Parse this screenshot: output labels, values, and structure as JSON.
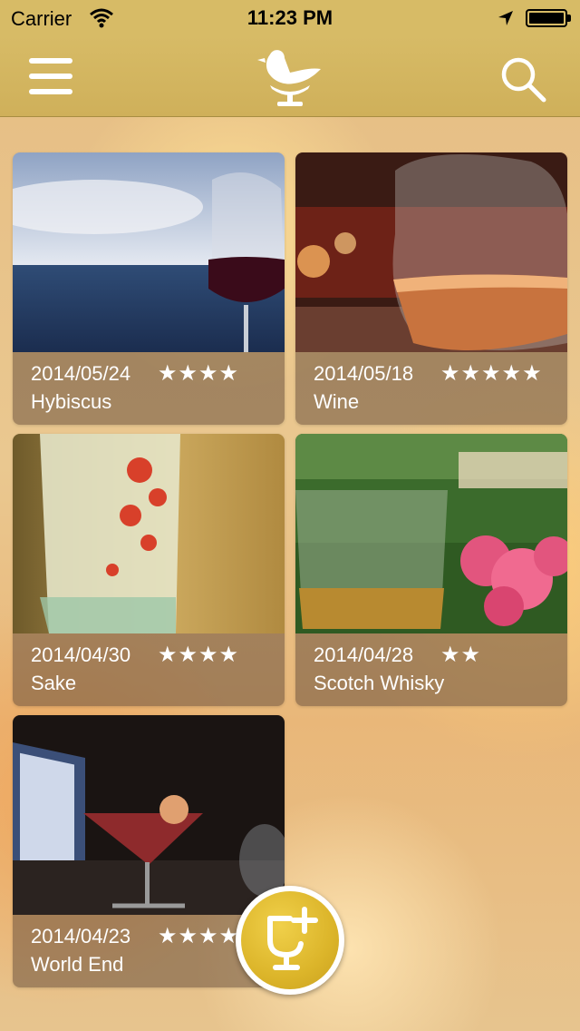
{
  "status_bar": {
    "carrier": "Carrier",
    "time": "11:23 PM"
  },
  "nav": {
    "menu_icon": "hamburger-menu-icon",
    "logo_icon": "bird-on-glass-logo",
    "search_icon": "search-icon"
  },
  "cards": [
    {
      "date": "2014/05/24",
      "stars": "★★★★",
      "rating": 4,
      "name": "Hybiscus"
    },
    {
      "date": "2014/05/18",
      "stars": "★★★★★",
      "rating": 5,
      "name": "Wine"
    },
    {
      "date": "2014/04/30",
      "stars": "★★★★",
      "rating": 4,
      "name": "Sake"
    },
    {
      "date": "2014/04/28",
      "stars": "★★",
      "rating": 2,
      "name": "Scotch Whisky"
    },
    {
      "date": "2014/04/23",
      "stars": "★★★★",
      "rating": 4,
      "name": "World End"
    }
  ],
  "fab": {
    "icon": "add-glass-icon"
  },
  "colors": {
    "nav_bar": "#d7bb66",
    "fab": "#dcb52a",
    "card_info": "#69503c"
  }
}
